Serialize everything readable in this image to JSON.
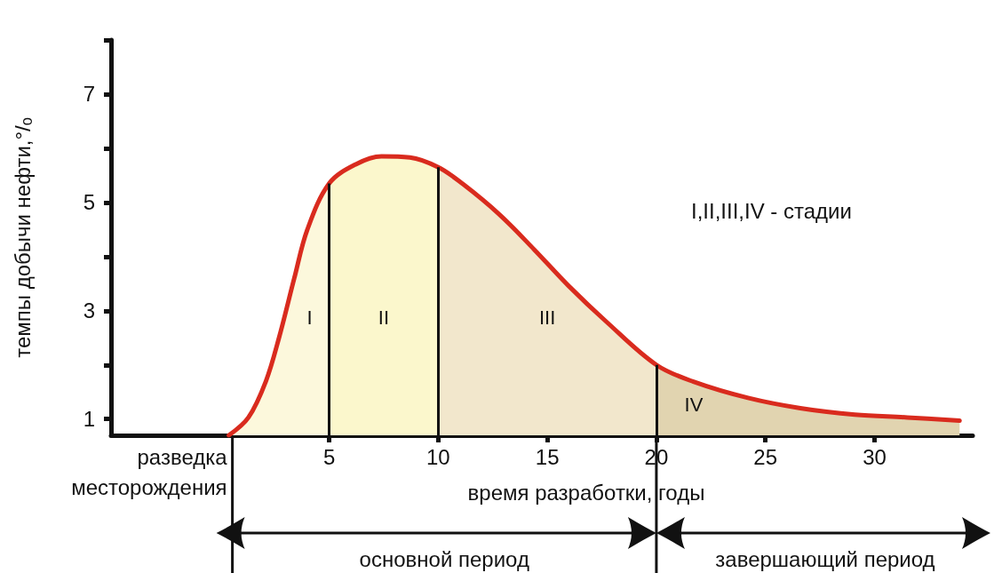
{
  "chart_data": {
    "type": "area",
    "xlabel": "время разработки, годы",
    "ylabel": "темпы добычи нефти,°/ₒ",
    "series": [
      {
        "color": "#fcf8dc",
        "x": [
          0.4,
          1.3,
          2.1,
          2.7,
          3.4,
          4.0,
          5
        ],
        "values": [
          0.7,
          1.03,
          1.7,
          2.5,
          3.6,
          4.5,
          5.35
        ]
      },
      {
        "color": "#fbf7cc",
        "x": [
          5,
          6.2,
          7.4,
          8.7,
          10
        ],
        "values": [
          5.35,
          5.7,
          5.85,
          5.83,
          5.65
        ]
      },
      {
        "color": "#f2e7cc",
        "x": [
          10,
          11.1,
          12.8,
          14.4,
          16,
          17.7,
          20
        ],
        "values": [
          5.65,
          5.35,
          4.78,
          4.13,
          3.45,
          2.8,
          2.0
        ]
      },
      {
        "color": "#e1d4b0",
        "x": [
          20,
          21.7,
          24.2,
          26.6,
          29.1,
          31.5,
          33.9
        ],
        "values": [
          2.0,
          1.69,
          1.39,
          1.2,
          1.08,
          1.03,
          0.97
        ]
      },
      {
        "type": "line",
        "color": "#d92b1e",
        "x": [
          0.4,
          1.3,
          2.1,
          2.7,
          3.4,
          4.0,
          5,
          6.2,
          7.4,
          8.7,
          10,
          11.1,
          12.8,
          14.4,
          16,
          17.7,
          20,
          21.7,
          24.2,
          26.6,
          29.1,
          31.5,
          33.9
        ],
        "values": [
          0.7,
          1.03,
          1.7,
          2.5,
          3.6,
          4.5,
          5.35,
          5.7,
          5.85,
          5.83,
          5.65,
          5.35,
          4.78,
          4.13,
          3.45,
          2.8,
          2.0,
          1.69,
          1.39,
          1.2,
          1.08,
          1.03,
          0.97
        ]
      }
    ],
    "xlim": [
      -5,
      34.5
    ],
    "xticks": [
      5,
      10,
      15,
      20,
      25,
      30
    ],
    "ylim": [
      0.7,
      8
    ],
    "yticks": [
      1,
      {
        "value": 2,
        "label": null
      },
      3,
      {
        "value": 4,
        "label": null
      },
      5,
      {
        "value": 6,
        "label": null
      },
      7,
      {
        "value": 8,
        "label": null
      }
    ],
    "ref_lines": [
      {
        "axis": "x",
        "value": 5
      },
      {
        "axis": "x",
        "value": 10
      },
      {
        "axis": "x",
        "value": 20
      }
    ],
    "annotations": [
      "I,II,III,IV - стадии",
      "I",
      "II",
      "III",
      "IV",
      "разведка месторождения",
      "основной период",
      "завершающий период"
    ],
    "marker": "none",
    "line_style": "solid",
    "grid": false
  }
}
